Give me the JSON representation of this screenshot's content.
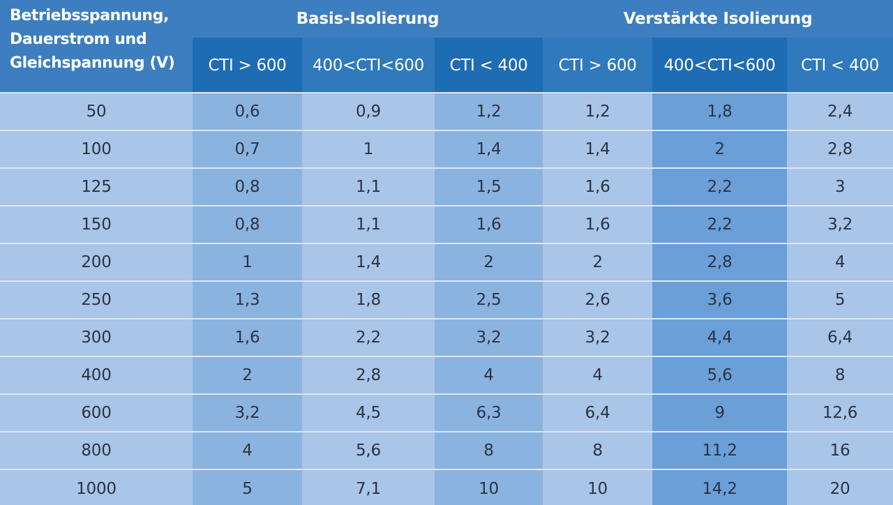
{
  "header": {
    "corner_label_lines": [
      "Betriebsspannung,",
      "Dauerstrom und",
      "Gleichspannung (V)"
    ],
    "groups": [
      {
        "label": "Basis-Isolierung",
        "subcolumns": [
          "CTI > 600",
          "400<CTI<600",
          "CTI < 400"
        ]
      },
      {
        "label": "Verstärkte Isolierung",
        "subcolumns": [
          "CTI > 600",
          "400<CTI<600",
          "CTI < 400"
        ]
      }
    ]
  },
  "rows": [
    {
      "voltage": "50",
      "values": [
        "0,6",
        "0,9",
        "1,2",
        "1,2",
        "1,8",
        "2,4"
      ]
    },
    {
      "voltage": "100",
      "values": [
        "0,7",
        "1",
        "1,4",
        "1,4",
        "2",
        "2,8"
      ]
    },
    {
      "voltage": "125",
      "values": [
        "0,8",
        "1,1",
        "1,5",
        "1,6",
        "2,2",
        "3"
      ]
    },
    {
      "voltage": "150",
      "values": [
        "0,8",
        "1,1",
        "1,6",
        "1,6",
        "2,2",
        "3,2"
      ]
    },
    {
      "voltage": "200",
      "values": [
        "1",
        "1,4",
        "2",
        "2",
        "2,8",
        "4"
      ]
    },
    {
      "voltage": "250",
      "values": [
        "1,3",
        "1,8",
        "2,5",
        "2,6",
        "3,6",
        "5"
      ]
    },
    {
      "voltage": "300",
      "values": [
        "1,6",
        "2,2",
        "3,2",
        "3,2",
        "4,4",
        "6,4"
      ]
    },
    {
      "voltage": "400",
      "values": [
        "2",
        "2,8",
        "4",
        "4",
        "5,6",
        "8"
      ]
    },
    {
      "voltage": "600",
      "values": [
        "3,2",
        "4,5",
        "6,3",
        "6,4",
        "9",
        "12,6"
      ]
    },
    {
      "voltage": "800",
      "values": [
        "4",
        "5,6",
        "8",
        "8",
        "11,2",
        "16"
      ]
    },
    {
      "voltage": "1000",
      "values": [
        "5",
        "7,1",
        "10",
        "10",
        "14,2",
        "20"
      ]
    }
  ],
  "colors": {
    "header_blue": "#3c7ec0",
    "header_dark_blue": "#1e6cb3",
    "body_light_blue": "#a9c5e8",
    "body_mid_blue": "#8bb3e0",
    "body_dark_blue": "#6b9fd8",
    "row_divider": "#dde8f6"
  }
}
